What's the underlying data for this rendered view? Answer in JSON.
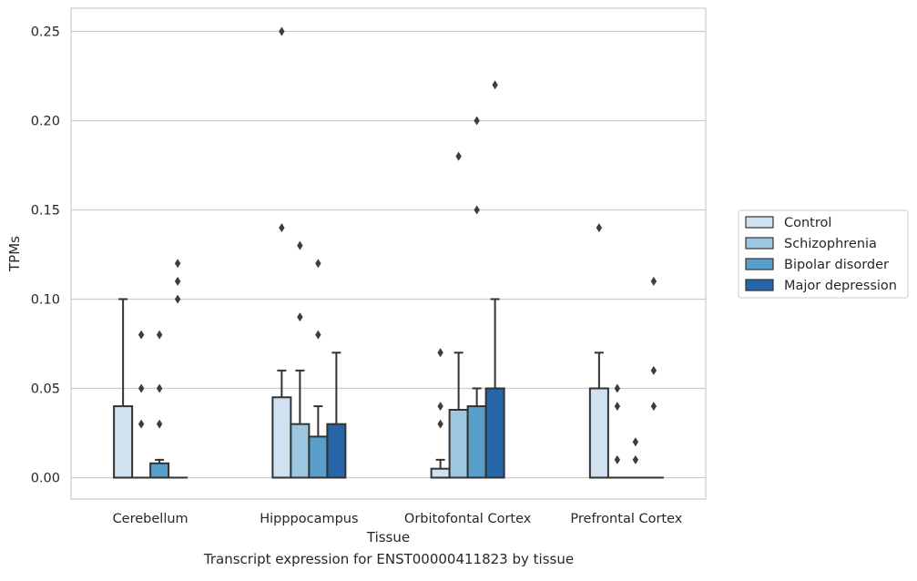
{
  "caption": "Transcript expression for ENST00000411823 by tissue",
  "chart_data": {
    "type": "boxplot",
    "title": "",
    "xlabel": "Tissue",
    "ylabel": "TPMs",
    "ylim": [
      -0.012,
      0.263
    ],
    "yticks": [
      "0.00",
      "0.05",
      "0.10",
      "0.15",
      "0.20",
      "0.25"
    ],
    "ytick_values": [
      0,
      0.05,
      0.1,
      0.15,
      0.2,
      0.25
    ],
    "grid": "horizontal",
    "legend_position": "right",
    "categories": [
      "Cerebellum",
      "Hipppocampus",
      "Orbitofontal Cortex",
      "Prefrontal Cortex"
    ],
    "colors": {
      "Control": "#d0e1f1",
      "Schizophrenia": "#9dc7e0",
      "Bipolar disorder": "#5a9fcc",
      "Major depression": "#2565a8",
      "edge": "#333333",
      "grid": "#cccccc"
    },
    "series": [
      {
        "name": "Control",
        "boxes": [
          {
            "q1": 0,
            "median": 0,
            "q3": 0.04,
            "whisker_low": 0,
            "whisker_high": 0.1,
            "outliers": []
          },
          {
            "q1": 0,
            "median": 0,
            "q3": 0.045,
            "whisker_low": 0,
            "whisker_high": 0.06,
            "outliers": [
              0.14,
              0.25
            ]
          },
          {
            "q1": 0,
            "median": 0,
            "q3": 0.005,
            "whisker_low": 0,
            "whisker_high": 0.01,
            "outliers": [
              0.03,
              0.04,
              0.07
            ]
          },
          {
            "q1": 0,
            "median": 0,
            "q3": 0.05,
            "whisker_low": 0,
            "whisker_high": 0.07,
            "outliers": [
              0.14
            ]
          }
        ]
      },
      {
        "name": "Schizophrenia",
        "boxes": [
          {
            "q1": 0,
            "median": 0,
            "q3": 0,
            "whisker_low": 0,
            "whisker_high": 0,
            "outliers": [
              0.03,
              0.05,
              0.08
            ]
          },
          {
            "q1": 0,
            "median": 0,
            "q3": 0.03,
            "whisker_low": 0,
            "whisker_high": 0.06,
            "outliers": [
              0.09,
              0.13
            ]
          },
          {
            "q1": 0,
            "median": 0,
            "q3": 0.038,
            "whisker_low": 0,
            "whisker_high": 0.07,
            "outliers": [
              0.18
            ]
          },
          {
            "q1": 0,
            "median": 0,
            "q3": 0,
            "whisker_low": 0,
            "whisker_high": 0,
            "outliers": [
              0.01,
              0.04,
              0.05
            ]
          }
        ]
      },
      {
        "name": "Bipolar disorder",
        "boxes": [
          {
            "q1": 0,
            "median": 0,
            "q3": 0.008,
            "whisker_low": 0,
            "whisker_high": 0.01,
            "outliers": [
              0.03,
              0.05,
              0.08
            ]
          },
          {
            "q1": 0,
            "median": 0,
            "q3": 0.023,
            "whisker_low": 0,
            "whisker_high": 0.04,
            "outliers": [
              0.08,
              0.12
            ]
          },
          {
            "q1": 0,
            "median": 0,
            "q3": 0.04,
            "whisker_low": 0,
            "whisker_high": 0.05,
            "outliers": [
              0.15,
              0.2
            ]
          },
          {
            "q1": 0,
            "median": 0,
            "q3": 0,
            "whisker_low": 0,
            "whisker_high": 0,
            "outliers": [
              0.01,
              0.02
            ]
          }
        ]
      },
      {
        "name": "Major depression",
        "boxes": [
          {
            "q1": 0,
            "median": 0,
            "q3": 0,
            "whisker_low": 0,
            "whisker_high": 0,
            "outliers": [
              0.1,
              0.11,
              0.12
            ]
          },
          {
            "q1": 0,
            "median": 0,
            "q3": 0.03,
            "whisker_low": 0,
            "whisker_high": 0.07,
            "outliers": []
          },
          {
            "q1": 0,
            "median": 0,
            "q3": 0.05,
            "whisker_low": 0,
            "whisker_high": 0.1,
            "outliers": [
              0.22
            ]
          },
          {
            "q1": 0,
            "median": 0,
            "q3": 0,
            "whisker_low": 0,
            "whisker_high": 0,
            "outliers": [
              0.04,
              0.06,
              0.11
            ]
          }
        ]
      }
    ]
  }
}
